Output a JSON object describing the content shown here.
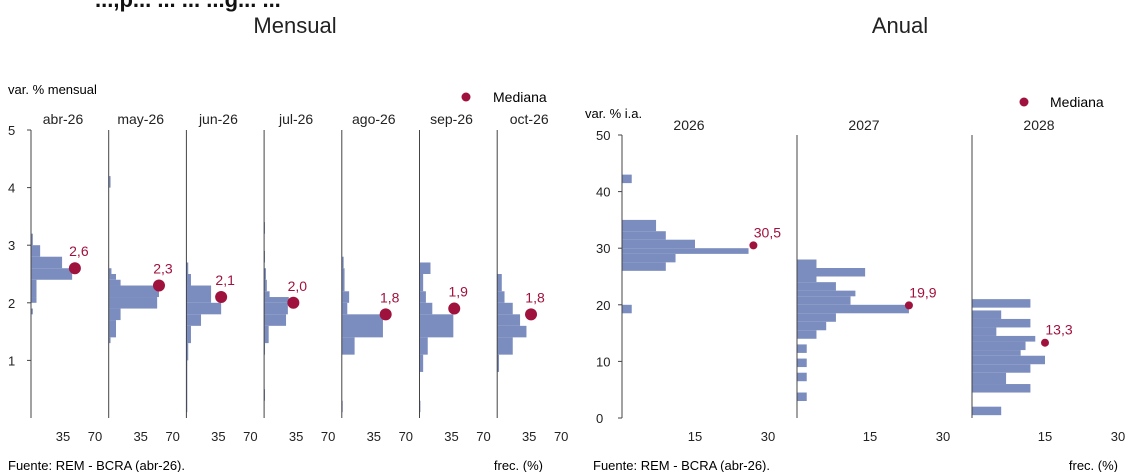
{
  "header": {
    "clipped_title": "...,p... ... ... ...g... ...",
    "left_title": "Mensual",
    "right_title": "Anual"
  },
  "legend_label": "Mediana",
  "colors": {
    "bar": "#7b8cbe",
    "median": "#a0123e",
    "label": "#a0123e",
    "axis": "#444444"
  },
  "chart_data": [
    {
      "type": "bar",
      "orientation": "horizontal-histogram",
      "ylabel": "var. % mensual",
      "xlabel": "frec. (%)",
      "source": "Fuente: REM - BCRA (abr-26).",
      "ylim": [
        0,
        5
      ],
      "yticks": [
        1,
        2,
        3,
        4,
        5
      ],
      "xticks": [
        35,
        70
      ],
      "xlim": [
        0,
        70
      ],
      "panels": [
        {
          "title": "abr-26",
          "median": 2.6,
          "median_label": "2,6",
          "median_freq": 48,
          "bins": [
            [
              1.8,
              1.9,
              2
            ],
            [
              2.0,
              2.1,
              6
            ],
            [
              2.1,
              2.4,
              6
            ],
            [
              2.4,
              2.6,
              45
            ],
            [
              2.6,
              2.8,
              34
            ],
            [
              2.8,
              3.0,
              10
            ],
            [
              3.0,
              3.2,
              2
            ]
          ]
        },
        {
          "title": "may-26",
          "median": 2.3,
          "median_label": "2,3",
          "median_freq": 55,
          "bins": [
            [
              1.3,
              1.4,
              2
            ],
            [
              1.4,
              1.7,
              8
            ],
            [
              1.7,
              1.9,
              13
            ],
            [
              1.9,
              2.1,
              53
            ],
            [
              2.1,
              2.3,
              55
            ],
            [
              2.3,
              2.4,
              13
            ],
            [
              2.4,
              2.5,
              8
            ],
            [
              2.5,
              2.6,
              3
            ],
            [
              4.0,
              4.2,
              2
            ]
          ]
        },
        {
          "title": "jun-26",
          "median": 2.1,
          "median_label": "2,1",
          "median_freq": 38,
          "bins": [
            [
              0.1,
              1.0,
              1
            ],
            [
              1.0,
              1.3,
              2
            ],
            [
              1.3,
              1.6,
              5
            ],
            [
              1.6,
              1.8,
              16
            ],
            [
              1.8,
              2.0,
              38
            ],
            [
              2.0,
              2.3,
              27
            ],
            [
              2.3,
              2.5,
              5
            ],
            [
              2.5,
              2.7,
              2
            ]
          ]
        },
        {
          "title": "jul-26",
          "median": 2.0,
          "median_label": "2,0",
          "median_freq": 32,
          "bins": [
            [
              0.3,
              0.5,
              1
            ],
            [
              1.1,
              1.3,
              1
            ],
            [
              1.3,
              1.6,
              5
            ],
            [
              1.6,
              1.8,
              24
            ],
            [
              1.8,
              2.0,
              26
            ],
            [
              2.0,
              2.1,
              27
            ],
            [
              2.1,
              2.2,
              6
            ],
            [
              2.2,
              2.4,
              3
            ],
            [
              2.4,
              2.6,
              2
            ],
            [
              2.7,
              2.9,
              1
            ],
            [
              3.2,
              3.4,
              1
            ]
          ]
        },
        {
          "title": "ago-26",
          "median": 1.8,
          "median_label": "1,8",
          "median_freq": 48,
          "bins": [
            [
              0.1,
              0.3,
              1
            ],
            [
              1.1,
              1.4,
              14
            ],
            [
              1.4,
              1.8,
              45
            ],
            [
              1.8,
              2.0,
              6
            ],
            [
              2.0,
              2.2,
              8
            ],
            [
              2.2,
              2.6,
              3
            ],
            [
              2.6,
              2.8,
              2
            ]
          ]
        },
        {
          "title": "sep-26",
          "median": 1.9,
          "median_label": "1,9",
          "median_freq": 38,
          "bins": [
            [
              0.1,
              0.3,
              1
            ],
            [
              0.8,
              1.1,
              4
            ],
            [
              1.1,
              1.4,
              9
            ],
            [
              1.4,
              1.8,
              37
            ],
            [
              1.8,
              2.0,
              14
            ],
            [
              2.0,
              2.2,
              7
            ],
            [
              2.2,
              2.5,
              4
            ],
            [
              2.5,
              2.7,
              12
            ]
          ]
        },
        {
          "title": "oct-26",
          "median": 1.8,
          "median_label": "1,8",
          "median_freq": 37,
          "bins": [
            [
              0.8,
              1.1,
              2
            ],
            [
              1.1,
              1.4,
              17
            ],
            [
              1.4,
              1.6,
              32
            ],
            [
              1.6,
              1.8,
              25
            ],
            [
              1.8,
              2.0,
              17
            ],
            [
              2.0,
              2.2,
              8
            ],
            [
              2.2,
              2.5,
              5
            ]
          ]
        }
      ]
    },
    {
      "type": "bar",
      "orientation": "horizontal-histogram",
      "ylabel": "var. % i.a.",
      "xlabel": "frec. (%)",
      "source": "Fuente: REM - BCRA (abr-26).",
      "ylim": [
        0,
        50
      ],
      "yticks": [
        0,
        10,
        20,
        30,
        40,
        50
      ],
      "xticks": [
        15,
        30
      ],
      "xlim": [
        0,
        30
      ],
      "panels": [
        {
          "title": "2026",
          "median": 30.5,
          "median_label": "30,5",
          "median_freq": 27,
          "bins": [
            [
              18.5,
              20,
              2
            ],
            [
              26,
              27.5,
              9
            ],
            [
              27.5,
              29,
              11
            ],
            [
              29,
              30,
              26
            ],
            [
              30,
              31.5,
              15
            ],
            [
              31.5,
              33,
              9
            ],
            [
              33,
              35,
              7
            ],
            [
              41.5,
              43,
              2
            ]
          ]
        },
        {
          "title": "2027",
          "median": 19.9,
          "median_label": "19,9",
          "median_freq": 23,
          "bins": [
            [
              3,
              4.5,
              2
            ],
            [
              6.5,
              8,
              2
            ],
            [
              9,
              10.5,
              2
            ],
            [
              11.5,
              13,
              2
            ],
            [
              14,
              15.5,
              4
            ],
            [
              15.5,
              17,
              6
            ],
            [
              17,
              18.5,
              8
            ],
            [
              18.5,
              20,
              23
            ],
            [
              20,
              21.5,
              11
            ],
            [
              21.5,
              22.5,
              12
            ],
            [
              22.5,
              24,
              8
            ],
            [
              24,
              25,
              4
            ],
            [
              25,
              26.5,
              14
            ],
            [
              26.5,
              28,
              4
            ]
          ]
        },
        {
          "title": "2028",
          "median": 13.3,
          "median_label": "13,3",
          "median_freq": 15,
          "bins": [
            [
              0.5,
              2,
              6
            ],
            [
              4.5,
              6,
              12
            ],
            [
              6,
              8,
              7
            ],
            [
              8,
              9.5,
              12
            ],
            [
              9.5,
              11,
              15
            ],
            [
              11,
              12,
              10
            ],
            [
              12,
              13.5,
              11
            ],
            [
              13.5,
              14.5,
              13
            ],
            [
              14.5,
              16,
              5
            ],
            [
              16,
              17.5,
              12
            ],
            [
              17.5,
              19,
              6
            ],
            [
              19.5,
              21,
              12
            ]
          ]
        }
      ]
    }
  ]
}
